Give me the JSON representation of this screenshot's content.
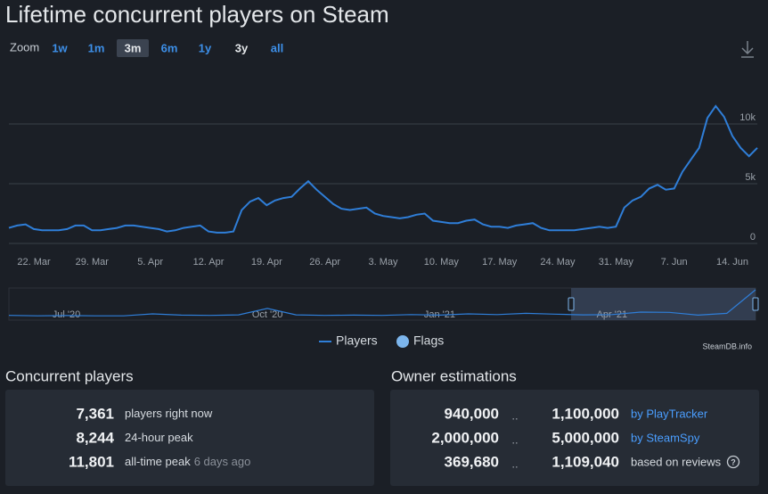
{
  "chart_data": [
    {
      "type": "line",
      "title": "Lifetime concurrent players on Steam",
      "categories": [
        null,
        null,
        null,
        "22. Mar",
        null,
        null,
        null,
        null,
        null,
        null,
        "29. Mar",
        null,
        null,
        null,
        null,
        null,
        null,
        "5. Apr",
        null,
        null,
        null,
        null,
        null,
        null,
        "12. Apr",
        null,
        null,
        null,
        null,
        null,
        null,
        "19. Apr",
        null,
        null,
        null,
        null,
        null,
        null,
        "26. Apr",
        null,
        null,
        null,
        null,
        null,
        null,
        "3. May",
        null,
        null,
        null,
        null,
        null,
        null,
        "10. May",
        null,
        null,
        null,
        null,
        null,
        null,
        "17. May",
        null,
        null,
        null,
        null,
        null,
        null,
        "24. May",
        null,
        null,
        null,
        null,
        null,
        null,
        "31. May",
        null,
        null,
        null,
        null,
        null,
        null,
        "7. Jun",
        null,
        null,
        null,
        null,
        null,
        null,
        "14. Jun",
        null,
        null,
        null
      ],
      "series": [
        {
          "name": "Players",
          "color": "#2f7ed8",
          "values": [
            1300,
            1500,
            1600,
            1200,
            1100,
            1100,
            1100,
            1200,
            1500,
            1500,
            1100,
            1100,
            1200,
            1300,
            1500,
            1500,
            1400,
            1300,
            1200,
            1000,
            1100,
            1300,
            1400,
            1500,
            1000,
            900,
            900,
            1000,
            2800,
            3500,
            3800,
            3200,
            3600,
            3800,
            3900,
            4600,
            5200,
            4500,
            3900,
            3300,
            2900,
            2800,
            2900,
            3000,
            2500,
            2300,
            2200,
            2100,
            2200,
            2400,
            2500,
            1900,
            1800,
            1700,
            1700,
            1900,
            2000,
            1600,
            1400,
            1400,
            1300,
            1500,
            1600,
            1700,
            1300,
            1100,
            1100,
            1100,
            1100,
            1200,
            1300,
            1400,
            1300,
            1400,
            3000,
            3600,
            3900,
            4600,
            4900,
            4500,
            4600,
            6000,
            7000,
            8000,
            10500,
            11500,
            10600,
            9000,
            8000,
            7300,
            8000
          ]
        }
      ],
      "ylim": [
        0,
        15000
      ],
      "yticks": [
        0,
        {
          "value": 5000,
          "label": "5k"
        },
        {
          "value": 10000,
          "label": "10k"
        }
      ],
      "grid": true
    },
    {
      "type": "line",
      "categories": [
        null,
        null,
        "Jul '20",
        null,
        null,
        null,
        null,
        null,
        null,
        "Oct '20",
        null,
        null,
        null,
        null,
        null,
        "Jan '21",
        null,
        null,
        null,
        null,
        null,
        "Apr '21",
        null,
        null,
        null,
        null,
        null
      ],
      "series": [
        {
          "color": "#2f7ed8",
          "values": [
            1200,
            1000,
            1100,
            1000,
            1000,
            1800,
            1300,
            1200,
            1400,
            4000,
            1400,
            1200,
            1300,
            1200,
            1500,
            1300,
            1800,
            1500,
            2000,
            1700,
            1400,
            1500,
            2500,
            2400,
            1300,
            2000,
            11500
          ]
        }
      ]
    }
  ],
  "zoom": {
    "label": "Zoom",
    "options": [
      "1w",
      "1m",
      "3m",
      "6m",
      "1y",
      "3y",
      "all"
    ]
  },
  "flags": {
    "name": "Flags",
    "color": "#7cb5ec"
  },
  "credit": "SteamDB.info",
  "concurrent": {
    "title": "Concurrent players",
    "rows": [
      {
        "value": "7,361",
        "label": "players right now"
      },
      {
        "value": "8,244",
        "label": "24-hour peak"
      },
      {
        "value": "11,801",
        "label": "all-time peak",
        "note": "6 days ago"
      }
    ]
  },
  "owners": {
    "title": "Owner estimations",
    "rows": [
      {
        "low": "940,000",
        "sep": "..",
        "high": "1,100,000",
        "source": "by PlayTracker"
      },
      {
        "low": "2,000,000",
        "sep": "..",
        "high": "5,000,000",
        "source": "by SteamSpy"
      },
      {
        "low": "369,680",
        "sep": "..",
        "high": "1,109,040",
        "source": "based on reviews"
      }
    ]
  }
}
